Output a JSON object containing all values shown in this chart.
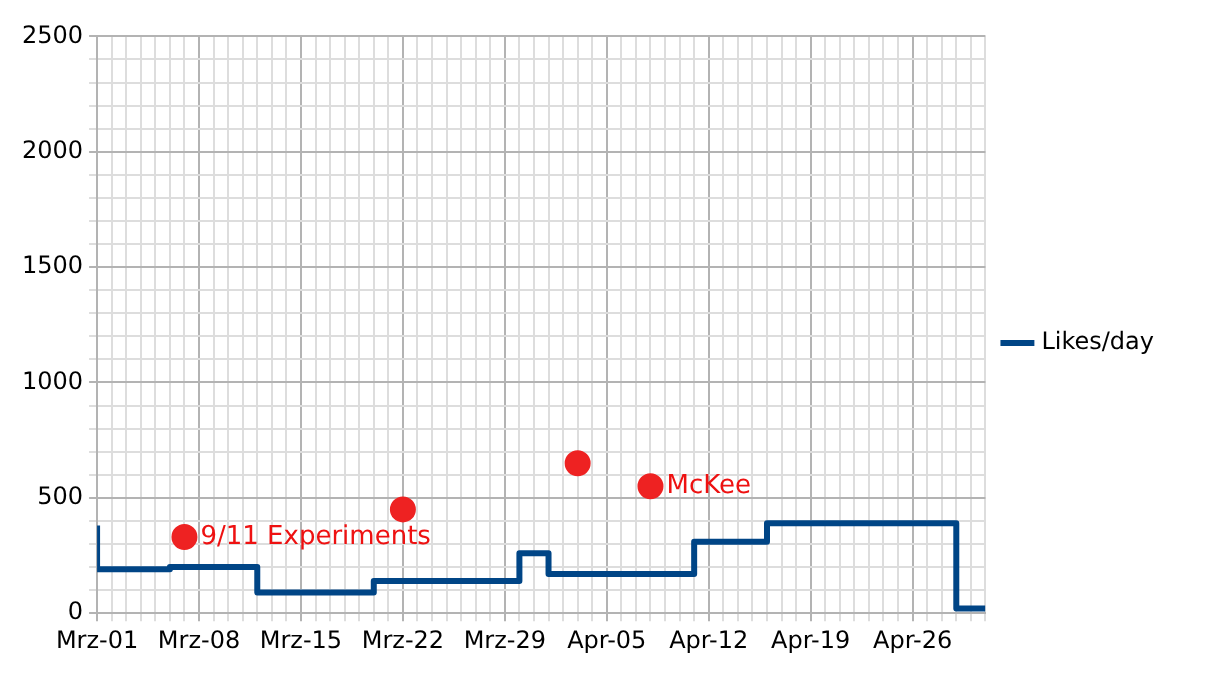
{
  "chart_data": {
    "type": "step",
    "xlim": [
      "--03-01",
      "--05-01"
    ],
    "ylim": [
      0,
      2500
    ],
    "xticks": [
      {
        "value": "--03-01",
        "label": "Mrz-01"
      },
      {
        "value": "--03-02",
        "label": null
      },
      {
        "value": "--03-03",
        "label": null
      },
      {
        "value": "--03-04",
        "label": null
      },
      {
        "value": "--03-05",
        "label": null
      },
      {
        "value": "--03-06",
        "label": null
      },
      {
        "value": "--03-07",
        "label": null
      },
      {
        "value": "--03-08",
        "label": "Mrz-08"
      },
      {
        "value": "--03-09",
        "label": null
      },
      {
        "value": "--03-10",
        "label": null
      },
      {
        "value": "--03-11",
        "label": null
      },
      {
        "value": "--03-12",
        "label": null
      },
      {
        "value": "--03-13",
        "label": null
      },
      {
        "value": "--03-14",
        "label": null
      },
      {
        "value": "--03-15",
        "label": "Mrz-15"
      },
      {
        "value": "--03-16",
        "label": null
      },
      {
        "value": "--03-17",
        "label": null
      },
      {
        "value": "--03-18",
        "label": null
      },
      {
        "value": "--03-19",
        "label": null
      },
      {
        "value": "--03-20",
        "label": null
      },
      {
        "value": "--03-21",
        "label": null
      },
      {
        "value": "--03-22",
        "label": "Mrz-22"
      },
      {
        "value": "--03-23",
        "label": null
      },
      {
        "value": "--03-24",
        "label": null
      },
      {
        "value": "--03-25",
        "label": null
      },
      {
        "value": "--03-26",
        "label": null
      },
      {
        "value": "--03-27",
        "label": null
      },
      {
        "value": "--03-28",
        "label": null
      },
      {
        "value": "--03-29",
        "label": "Mrz-29"
      },
      {
        "value": "--03-30",
        "label": null
      },
      {
        "value": "--03-31",
        "label": null
      },
      {
        "value": "--04-01",
        "label": null
      },
      {
        "value": "--04-02",
        "label": null
      },
      {
        "value": "--04-03",
        "label": null
      },
      {
        "value": "--04-04",
        "label": null
      },
      {
        "value": "--04-05",
        "label": "Apr-05"
      },
      {
        "value": "--04-06",
        "label": null
      },
      {
        "value": "--04-07",
        "label": null
      },
      {
        "value": "--04-08",
        "label": null
      },
      {
        "value": "--04-09",
        "label": null
      },
      {
        "value": "--04-10",
        "label": null
      },
      {
        "value": "--04-11",
        "label": null
      },
      {
        "value": "--04-12",
        "label": "Apr-12"
      },
      {
        "value": "--04-13",
        "label": null
      },
      {
        "value": "--04-14",
        "label": null
      },
      {
        "value": "--04-15",
        "label": null
      },
      {
        "value": "--04-16",
        "label": null
      },
      {
        "value": "--04-17",
        "label": null
      },
      {
        "value": "--04-18",
        "label": null
      },
      {
        "value": "--04-19",
        "label": "Apr-19"
      },
      {
        "value": "--04-20",
        "label": null
      },
      {
        "value": "--04-21",
        "label": null
      },
      {
        "value": "--04-22",
        "label": null
      },
      {
        "value": "--04-23",
        "label": null
      },
      {
        "value": "--04-24",
        "label": null
      },
      {
        "value": "--04-25",
        "label": null
      },
      {
        "value": "--04-26",
        "label": "Apr-26"
      },
      {
        "value": "--04-27",
        "label": null
      },
      {
        "value": "--04-28",
        "label": null
      },
      {
        "value": "--04-29",
        "label": null
      },
      {
        "value": "--04-30",
        "label": null
      },
      {
        "value": "--05-01",
        "label": null
      }
    ],
    "yticks": [
      0,
      {
        "value": 100,
        "label": null
      },
      {
        "value": 200,
        "label": null
      },
      {
        "value": 300,
        "label": null
      },
      {
        "value": 400,
        "label": null
      },
      500,
      {
        "value": 600,
        "label": null
      },
      {
        "value": 700,
        "label": null
      },
      {
        "value": 800,
        "label": null
      },
      {
        "value": 900,
        "label": null
      },
      1000,
      {
        "value": 1100,
        "label": null
      },
      {
        "value": 1200,
        "label": null
      },
      {
        "value": 1300,
        "label": null
      },
      {
        "value": 1400,
        "label": null
      },
      1500,
      {
        "value": 1600,
        "label": null
      },
      {
        "value": 1700,
        "label": null
      },
      {
        "value": 1800,
        "label": null
      },
      {
        "value": 1900,
        "label": null
      },
      2000,
      {
        "value": 2100,
        "label": null
      },
      {
        "value": 2200,
        "label": null
      },
      {
        "value": 2300,
        "label": null
      },
      {
        "value": 2400,
        "label": null
      },
      2500
    ],
    "grid": true,
    "legend": "right",
    "series": [
      {
        "name": "Likes/day",
        "color": "#004586",
        "x": [
          "--03-01",
          "--03-01",
          "--03-06",
          "--03-12",
          "--03-20",
          "--03-30",
          "--04-01",
          "--04-11",
          "--04-16",
          "--04-29",
          "--05-01"
        ],
        "values": [
          380,
          190,
          200,
          90,
          140,
          260,
          170,
          310,
          390,
          20,
          20
        ]
      },
      {
        "type": "scatter",
        "marker": "circle",
        "color": "#ee2222",
        "x": [
          "--03-07",
          "--03-22",
          "--04-03",
          "--04-08"
        ],
        "values": [
          330,
          450,
          650,
          550
        ]
      }
    ],
    "annotations": [
      {
        "text": "9/11 Experiments",
        "x": "--03-07",
        "y": 330
      },
      {
        "text": "McKee",
        "x": "--04-08",
        "y": 550
      }
    ]
  }
}
